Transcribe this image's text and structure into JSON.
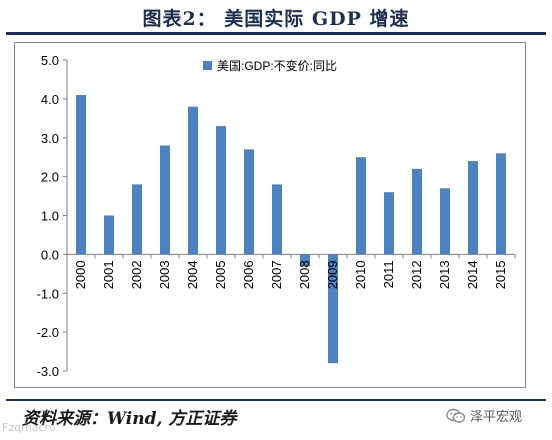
{
  "figure": {
    "title": "图表2：  美国实际 GDP 增速",
    "source": "资料来源：Wind, 方正证券",
    "watermark_right": "泽平宏观",
    "watermark_left": "Fzqmacro"
  },
  "colors": {
    "bar": "#4f81bd",
    "axis": "#808080",
    "text": "#000000",
    "title": "#1c2f4e"
  },
  "chart_data": {
    "type": "bar",
    "categories": [
      "2000",
      "2001",
      "2002",
      "2003",
      "2004",
      "2005",
      "2006",
      "2007",
      "2008",
      "2009",
      "2010",
      "2011",
      "2012",
      "2013",
      "2014",
      "2015"
    ],
    "series": [
      {
        "name": "美国:GDP:不变价:同比",
        "values": [
          4.1,
          1.0,
          1.8,
          2.8,
          3.8,
          3.3,
          2.7,
          1.8,
          -0.3,
          -2.8,
          2.5,
          1.6,
          2.2,
          1.7,
          2.4,
          2.6
        ]
      }
    ],
    "ylim": [
      -3.0,
      5.0
    ],
    "yticks": [
      "5.0",
      "4.0",
      "3.0",
      "2.0",
      "1.0",
      "0.0",
      "-1.0",
      "-2.0",
      "-3.0"
    ],
    "grid": false,
    "legend_position": "top-left"
  }
}
